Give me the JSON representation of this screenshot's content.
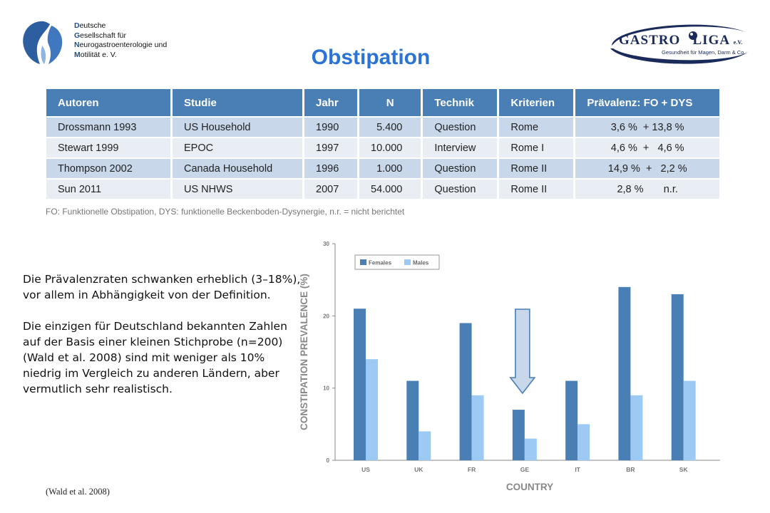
{
  "logo_left": {
    "lines": [
      {
        "initial": "D",
        "rest": "eutsche"
      },
      {
        "initial": "G",
        "rest": "esellschaft für"
      },
      {
        "initial": "N",
        "rest": "eurogastroenterologie und"
      },
      {
        "initial": "M",
        "rest": "otilität e. V."
      }
    ]
  },
  "logo_right": {
    "brand_a": "GASTRO",
    "brand_b": "LIGA",
    "brand_suffix": "e.V.",
    "tagline": "Gesundheit für Magen, Darm & Co."
  },
  "title": "Obstipation",
  "table": {
    "headers": [
      "Autoren",
      "Studie",
      "Jahr",
      "N",
      "Technik",
      "Kriterien",
      "Prävalenz: FO + DYS"
    ],
    "rows": [
      [
        "Drossmann 1993",
        "US Household",
        "1990",
        "5.400",
        "Question",
        "Rome",
        "3,6 %  + 13,8 %"
      ],
      [
        "Stewart 1999",
        "EPOC",
        "1997",
        "10.000",
        "Interview",
        "Rome I",
        "4,6 %  +   4,6 %"
      ],
      [
        "Thompson 2002",
        "Canada Household",
        "1996",
        "1.000",
        "Question",
        "Rome II",
        "14,9 %  +   2,2 %"
      ],
      [
        "Sun 2011",
        "US NHWS",
        "2007",
        "54.000",
        "Question",
        "Rome II",
        "2,8 %       n.r."
      ]
    ],
    "footnote": "FO: Funktionelle Obstipation, DYS: funktionelle Beckenboden-Dysynergie, n.r. = nicht berichtet"
  },
  "body_text": {
    "p1": "Die Prävalenzraten schwanken erheblich (3–18%), vor allem in Abhängigkeit von der Definition.",
    "p2": "Die einzigen für Deutschland bekannten Zahlen auf der Basis einer kleinen Stichprobe (n=200) (Wald et al. 2008) sind mit weniger als 10% niedrig im Vergleich zu anderen Ländern, aber vermutlich sehr realistisch."
  },
  "citation": "(Wald et al. 2008)",
  "chart_data": {
    "type": "bar",
    "categories": [
      "US",
      "UK",
      "FR",
      "GE",
      "IT",
      "BR",
      "SK"
    ],
    "series": [
      {
        "name": "Females",
        "values": [
          21,
          11,
          19,
          7,
          11,
          24,
          23
        ],
        "color": "#4a7fb6"
      },
      {
        "name": "Males",
        "values": [
          14,
          4,
          9,
          3,
          5,
          9,
          11
        ],
        "color": "#9ccaf5"
      }
    ],
    "xlabel": "COUNTRY",
    "ylabel": "CONSTIPATION PREVALENCE (%)",
    "ylim": [
      0,
      30
    ],
    "yticks": [
      0,
      10,
      20,
      30
    ],
    "legend": "top-left",
    "highlight_category": "GE",
    "grid": false
  }
}
